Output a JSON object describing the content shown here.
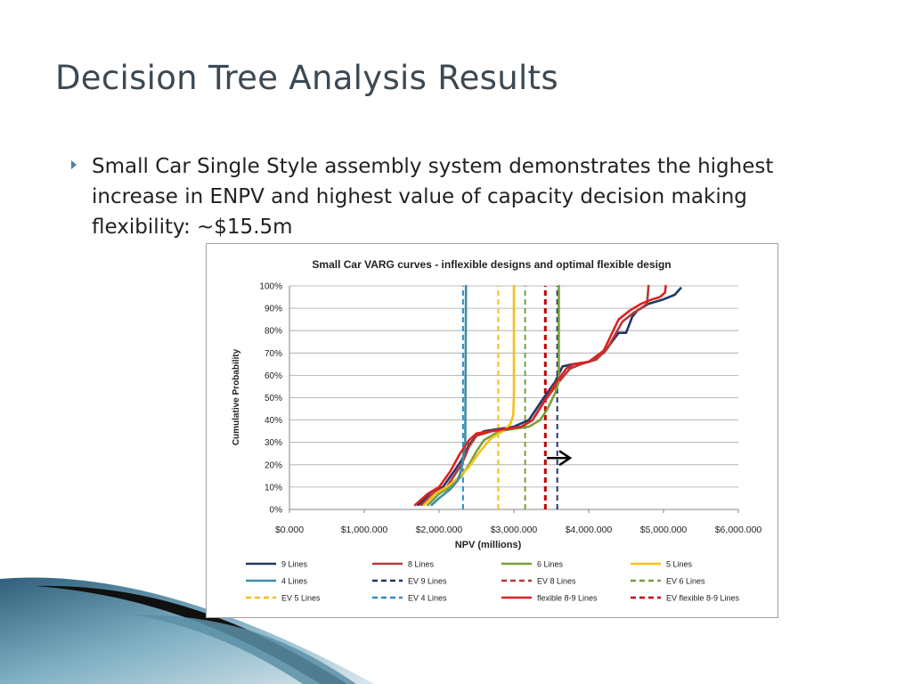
{
  "slide": {
    "title": "Decision Tree Analysis Results",
    "bullet": "Small Car Single Style assembly system demonstrates the highest increase in ENPV and highest value of capacity decision making flexibility: ~$15.5m"
  },
  "chart_data": {
    "type": "line",
    "title": "Small Car VARG curves - inflexible designs and optimal flexible design",
    "xlabel": "NPV (millions)",
    "ylabel": "Cumulative Probability",
    "xlim": [
      0,
      6000
    ],
    "ylim": [
      0,
      1
    ],
    "x_ticks": [
      0,
      1000,
      2000,
      3000,
      4000,
      5000,
      6000
    ],
    "x_tick_labels": [
      "$0.000",
      "$1,000.000",
      "$2,000.000",
      "$3,000.000",
      "$4,000.000",
      "$5,000.000",
      "$6,000.000"
    ],
    "y_ticks": [
      0,
      0.1,
      0.2,
      0.3,
      0.4,
      0.5,
      0.6,
      0.7,
      0.8,
      0.9,
      1.0
    ],
    "y_tick_labels": [
      "0%",
      "10%",
      "20%",
      "30%",
      "40%",
      "50%",
      "60%",
      "70%",
      "80%",
      "90%",
      "100%"
    ],
    "grid": "horizontal",
    "legend_placement": "bottom",
    "series": [
      {
        "name": "9 Lines",
        "color": "#1f3864",
        "style": "solid",
        "x": [
          1720,
          1900,
          2050,
          2200,
          2300,
          2400,
          2500,
          2600,
          2800,
          3000,
          3200,
          3400,
          3550,
          3650,
          3800,
          4000,
          4200,
          4400,
          4500,
          4580,
          4650,
          4800,
          5000,
          5150,
          5230
        ],
        "y": [
          0.02,
          0.08,
          0.1,
          0.17,
          0.22,
          0.29,
          0.33,
          0.35,
          0.36,
          0.37,
          0.4,
          0.5,
          0.57,
          0.64,
          0.65,
          0.66,
          0.7,
          0.79,
          0.79,
          0.86,
          0.89,
          0.92,
          0.94,
          0.96,
          0.99
        ]
      },
      {
        "name": "8 Lines",
        "color": "#b03a3a",
        "style": "solid",
        "x": [
          1760,
          1950,
          2100,
          2200,
          2300,
          2400,
          2500,
          2700,
          2900,
          3100,
          3250,
          3400,
          3600,
          3750,
          3900,
          4100,
          4250,
          4450,
          4600,
          4700,
          4780,
          4800
        ],
        "y": [
          0.02,
          0.08,
          0.1,
          0.15,
          0.2,
          0.28,
          0.33,
          0.35,
          0.36,
          0.37,
          0.4,
          0.48,
          0.57,
          0.63,
          0.65,
          0.67,
          0.72,
          0.84,
          0.88,
          0.9,
          0.92,
          1.0
        ]
      },
      {
        "name": "6 Lines",
        "color": "#77a03b",
        "style": "solid",
        "x": [
          1850,
          2000,
          2150,
          2300,
          2400,
          2500,
          2600,
          2800,
          3000,
          3200,
          3350,
          3450,
          3550,
          3600,
          3600
        ],
        "y": [
          0.02,
          0.07,
          0.1,
          0.15,
          0.2,
          0.26,
          0.31,
          0.35,
          0.36,
          0.37,
          0.4,
          0.45,
          0.52,
          0.57,
          1.0
        ]
      },
      {
        "name": "5 Lines",
        "color": "#f5c01a",
        "style": "solid",
        "x": [
          1800,
          1950,
          2100,
          2250,
          2400,
          2550,
          2700,
          2850,
          2950,
          2990,
          3000,
          3000
        ],
        "y": [
          0.02,
          0.07,
          0.1,
          0.14,
          0.19,
          0.26,
          0.32,
          0.35,
          0.38,
          0.42,
          0.5,
          1.0
        ]
      },
      {
        "name": "4 Lines",
        "color": "#3d8ea6",
        "style": "solid",
        "x": [
          1900,
          2000,
          2150,
          2250,
          2300,
          2350,
          2360
        ],
        "y": [
          0.02,
          0.05,
          0.09,
          0.13,
          0.18,
          0.3,
          1.0
        ]
      },
      {
        "name": "EV 9 Lines",
        "color": "#1f3864",
        "style": "dashed",
        "vline": true,
        "x": [
          3580,
          3580
        ],
        "y": [
          0.0,
          1.0
        ]
      },
      {
        "name": "EV 8 Lines",
        "color": "#b03a3a",
        "style": "dashed",
        "vline": true,
        "x": [
          3420,
          3420
        ],
        "y": [
          0.0,
          1.0
        ]
      },
      {
        "name": "EV 6 Lines",
        "color": "#77a03b",
        "style": "dashed",
        "vline": true,
        "x": [
          3150,
          3150
        ],
        "y": [
          0.0,
          1.0
        ]
      },
      {
        "name": "EV 5 Lines",
        "color": "#f5c01a",
        "style": "dashed",
        "vline": true,
        "x": [
          2790,
          2790
        ],
        "y": [
          0.0,
          1.0
        ]
      },
      {
        "name": "EV 4 Lines",
        "color": "#2d8fc8",
        "style": "dashed",
        "vline": true,
        "x": [
          2320,
          2320
        ],
        "y": [
          0.0,
          1.0
        ]
      },
      {
        "name": "flexible 8-9 Lines",
        "color": "#e02020",
        "style": "solid",
        "x": [
          1680,
          1850,
          2000,
          2150,
          2280,
          2400,
          2500,
          2700,
          2900,
          3100,
          3250,
          3400,
          3550,
          3700,
          3800,
          4000,
          4200,
          4400,
          4550,
          4700,
          4850,
          4950,
          5020,
          5030
        ],
        "y": [
          0.02,
          0.07,
          0.1,
          0.17,
          0.25,
          0.31,
          0.34,
          0.35,
          0.36,
          0.37,
          0.4,
          0.48,
          0.56,
          0.63,
          0.65,
          0.66,
          0.71,
          0.85,
          0.89,
          0.92,
          0.94,
          0.95,
          0.97,
          1.0
        ]
      },
      {
        "name": "EV flexible 8-9 Lines",
        "color": "#c00000",
        "style": "dashed",
        "vline": true,
        "x": [
          3420,
          3420
        ],
        "y": [
          0.0,
          1.0
        ]
      }
    ],
    "annotations": [
      {
        "type": "arrow",
        "from": [
          3440,
          0.23
        ],
        "to": [
          3750,
          0.23
        ],
        "color": "#000000"
      }
    ]
  }
}
